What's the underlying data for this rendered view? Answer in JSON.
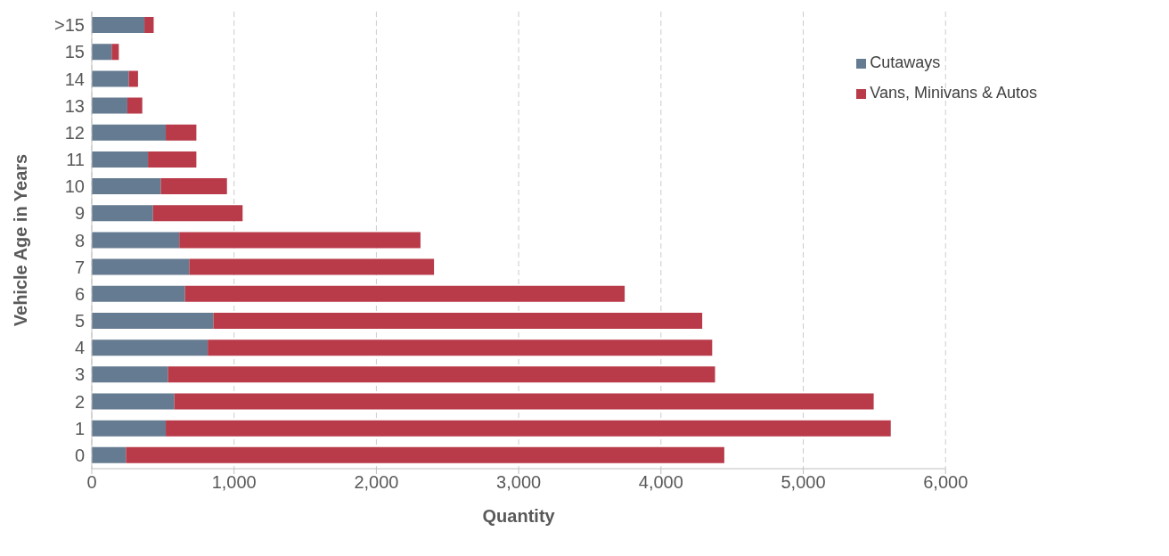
{
  "chart_data": {
    "type": "bar",
    "orientation": "horizontal",
    "stacked": true,
    "xlabel": "Quantity",
    "ylabel": "Vehicle Age in Years",
    "categories": [
      ">15",
      "15",
      "14",
      "13",
      "12",
      "11",
      "10",
      "9",
      "8",
      "7",
      "6",
      "5",
      "4",
      "3",
      "2",
      "1",
      "0"
    ],
    "series": [
      {
        "name": "Cutaways",
        "color": "#657b91",
        "values": [
          370,
          140,
          260,
          250,
          520,
          395,
          485,
          430,
          615,
          685,
          655,
          855,
          815,
          535,
          580,
          520,
          240
        ]
      },
      {
        "name": "Vans, Minivans & Autos",
        "color": "#b93a48",
        "values": [
          65,
          50,
          65,
          105,
          215,
          340,
          465,
          630,
          1695,
          1720,
          3090,
          3435,
          3545,
          3845,
          4915,
          5095,
          4205
        ]
      }
    ],
    "xlim": [
      0,
      6000
    ],
    "xticks": [
      {
        "value": 0,
        "label": "0"
      },
      {
        "value": 1000,
        "label": "1,000"
      },
      {
        "value": 2000,
        "label": "2,000"
      },
      {
        "value": 3000,
        "label": "3,000"
      },
      {
        "value": 4000,
        "label": "4,000"
      },
      {
        "value": 5000,
        "label": "5,000"
      },
      {
        "value": 6000,
        "label": "6,000"
      }
    ],
    "grid": "x",
    "legend": "top right"
  }
}
